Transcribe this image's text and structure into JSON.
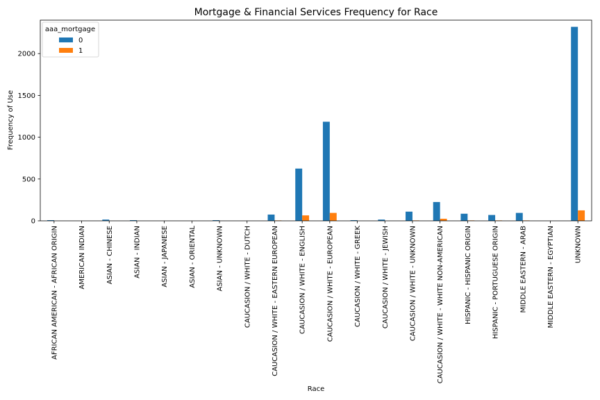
{
  "chart_data": {
    "type": "bar",
    "title": "Mortgage & Financial Services Frequency for Race",
    "xlabel": "Race",
    "ylabel": "Frequency of Use",
    "ylim": [
      0,
      2400
    ],
    "yticks": [
      0,
      500,
      1000,
      1500,
      2000
    ],
    "grid": false,
    "legend": {
      "title": "aaa_mortgage",
      "placement": "top-left"
    },
    "categories": [
      "AFRICAN AMERICAN - AFRICAN ORIGIN",
      "AMERICAN INDIAN",
      "ASIAN - CHINESE",
      "ASIAN - INDIAN",
      "ASIAN - JAPANESE",
      "ASIAN - ORIENTAL",
      "ASIAN - UNKNOWN",
      "CAUCASION / WHITE - DUTCH",
      "CAUCASION / WHITE - EASTERN EUROPEAN",
      "CAUCASION / WHITE - ENGLISH",
      "CAUCASION / WHITE - EUROPEAN",
      "CAUCASION / WHITE - GREEK",
      "CAUCASION / WHITE - JEWISH",
      "CAUCASION / WHITE - UNKNOWN",
      "CAUCASION / WHITE - WHITE NON-AMERICAN",
      "HISPANIC - HISPANIC ORIGIN",
      "HISPANIC - PORTUGUESE ORIGIN",
      "MIDDLE EASTERN - ARAB",
      "MIDDLE EASTERN - EGYPTIAN",
      "UNKNOWN"
    ],
    "series": [
      {
        "name": "0",
        "color": "#1f77b4",
        "values": [
          8,
          0,
          15,
          8,
          0,
          0,
          8,
          0,
          75,
          625,
          1185,
          8,
          15,
          110,
          225,
          85,
          70,
          95,
          0,
          2320
        ]
      },
      {
        "name": "1",
        "color": "#ff7f0e",
        "values": [
          0,
          0,
          0,
          0,
          0,
          0,
          0,
          0,
          5,
          65,
          95,
          0,
          0,
          5,
          25,
          5,
          5,
          5,
          0,
          125
        ]
      }
    ]
  }
}
